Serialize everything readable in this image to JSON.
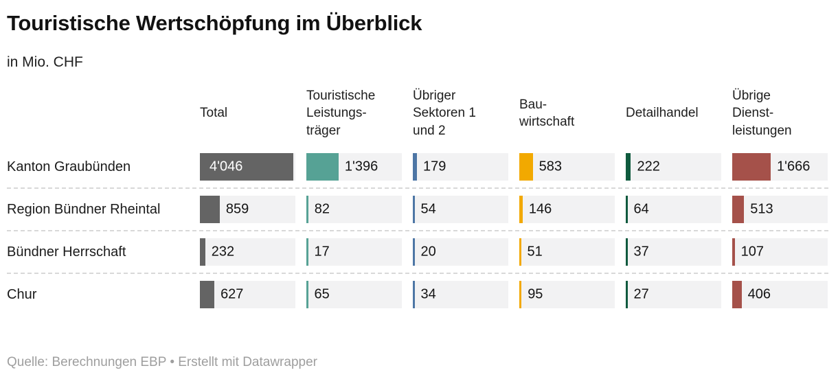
{
  "title": "Touristische Wertschöpfung im Überblick",
  "subtitle": "in Mio. CHF",
  "footer": "Quelle: Berechnungen EBP • Erstellt mit Datawrapper",
  "chart_data": {
    "type": "table",
    "title": "Touristische Wertschöpfung im Überblick",
    "subtitle": "in Mio. CHF",
    "unit": "Mio. CHF",
    "source": "Quelle: Berechnungen EBP",
    "attribution": "Erstellt mit Datawrapper",
    "scale_max": 4046,
    "cell_bg_color": "#f2f2f3",
    "columns": [
      {
        "label": "Total",
        "color": "#646464"
      },
      {
        "label": "Touristische\nLeistungs-\nträger",
        "color": "#56a295"
      },
      {
        "label": "Übriger\nSektoren 1\nund 2",
        "color": "#4d76a5"
      },
      {
        "label": "Bau-\nwirtschaft",
        "color": "#f2a900"
      },
      {
        "label": "Detailhandel",
        "color": "#0f5a3e"
      },
      {
        "label": "Übrige\nDienst-\nleistungen",
        "color": "#a5514a"
      }
    ],
    "rows": [
      {
        "label": "Kanton Graubünden",
        "values": [
          4046,
          1396,
          179,
          583,
          222,
          1666
        ],
        "display": [
          "4'046",
          "1'396",
          "179",
          "583",
          "222",
          "1'666"
        ]
      },
      {
        "label": "Region Bündner Rheintal",
        "values": [
          859,
          82,
          54,
          146,
          64,
          513
        ],
        "display": [
          "859",
          "82",
          "54",
          "146",
          "64",
          "513"
        ]
      },
      {
        "label": "Bündner Herrschaft",
        "values": [
          232,
          17,
          20,
          51,
          37,
          107
        ],
        "display": [
          "232",
          "17",
          "20",
          "51",
          "37",
          "107"
        ]
      },
      {
        "label": "Chur",
        "values": [
          627,
          65,
          34,
          95,
          27,
          406
        ],
        "display": [
          "627",
          "65",
          "34",
          "95",
          "27",
          "406"
        ]
      }
    ]
  }
}
